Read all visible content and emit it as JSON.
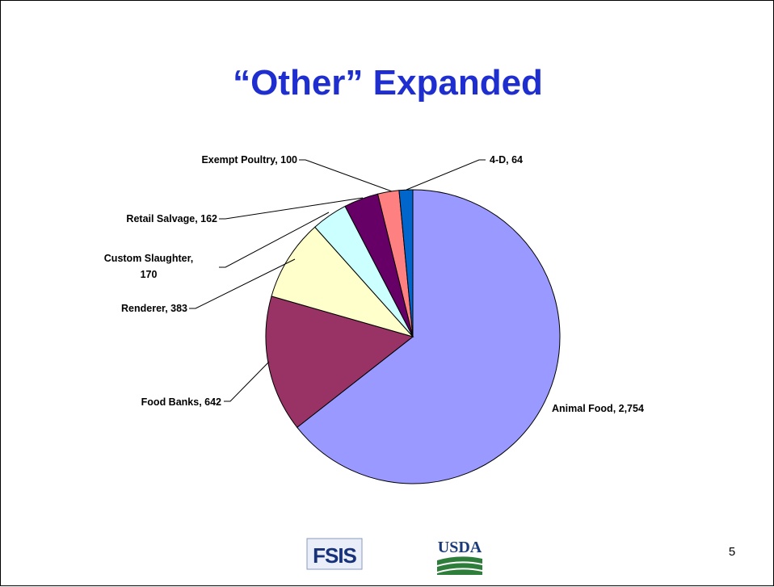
{
  "slide": {
    "title": "“Other” Expanded",
    "page_number": "5"
  },
  "logos": {
    "fsis_text": "FSIS",
    "usda_text": "USDA"
  },
  "chart_data": {
    "type": "pie",
    "title": "",
    "slices": [
      {
        "label": "Animal Food",
        "value": 2754,
        "display": "Animal Food,  2,754",
        "color": "#9999ff"
      },
      {
        "label": "Food Banks",
        "value": 642,
        "display": "Food Banks,  642",
        "color": "#993366"
      },
      {
        "label": "Renderer",
        "value": 383,
        "display": "Renderer,  383",
        "color": "#ffffcc"
      },
      {
        "label": "Custom Slaughter",
        "value": 170,
        "display_lines": [
          "Custom Slaughter,",
          "170"
        ],
        "color": "#ccffff"
      },
      {
        "label": "Retail Salvage",
        "value": 162,
        "display": "Retail Salvage,  162",
        "color": "#660066"
      },
      {
        "label": "Exempt Poultry",
        "value": 100,
        "display": "Exempt Poultry, 100",
        "color": "#ff8080"
      },
      {
        "label": "4-D",
        "value": 64,
        "display": "4-D,  64",
        "color": "#0066cc"
      }
    ],
    "start_angle_deg": 0,
    "direction": "clockwise",
    "legend": "none",
    "data_labels": "outside with leader lines"
  }
}
